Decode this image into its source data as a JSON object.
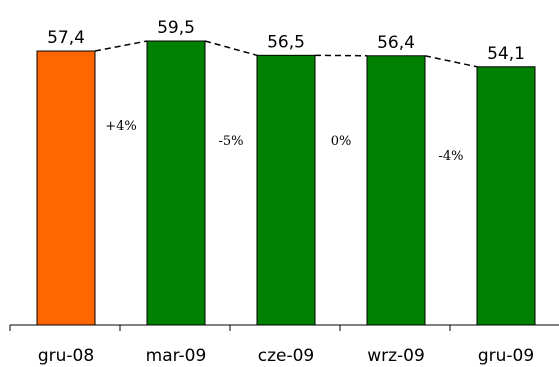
{
  "chart_data": {
    "type": "bar",
    "title": "",
    "xlabel": "",
    "ylabel": "",
    "categories": [
      "gru-08",
      "mar-09",
      "cze-09",
      "wrz-09",
      "gru-09"
    ],
    "values": [
      57.4,
      59.5,
      56.5,
      56.4,
      54.1
    ],
    "value_labels": [
      "57,4",
      "59,5",
      "56,5",
      "56,4",
      "54,1"
    ],
    "bar_colors": [
      "#ff6600",
      "#008000",
      "#008000",
      "#008000",
      "#008000"
    ],
    "changes": [
      "+4%",
      "-5%",
      "0%",
      "-4%"
    ],
    "ylim": [
      0,
      61
    ],
    "grid": false,
    "legend": "none",
    "connector": "dashed"
  }
}
